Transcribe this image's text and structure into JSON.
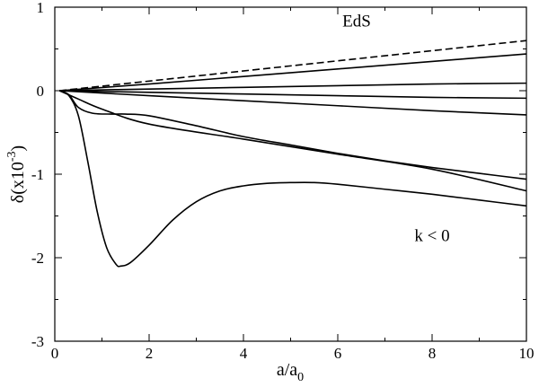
{
  "chart_data": {
    "type": "line",
    "title": "",
    "xlabel": {
      "base": "a/a",
      "sub": "0"
    },
    "ylabel": {
      "base": "δ(x10",
      "sup": "-3",
      "end": ")"
    },
    "xlim": [
      0,
      10
    ],
    "ylim": [
      -3,
      1
    ],
    "xticks": [
      0,
      2,
      4,
      6,
      8,
      10
    ],
    "yticks": [
      -3,
      -2,
      -1,
      0,
      1
    ],
    "grid": false,
    "annotations": [
      {
        "text": "EdS",
        "x": 6.4,
        "y": 0.77
      },
      {
        "text": "k < 0",
        "x": 8.0,
        "y": -1.8
      }
    ],
    "series": [
      {
        "style": "dashed",
        "points": [
          [
            0.1,
            0
          ],
          [
            10,
            0.6
          ]
        ]
      },
      {
        "style": "solid",
        "points": [
          [
            0.1,
            0
          ],
          [
            2,
            0.08
          ],
          [
            4,
            0.17
          ],
          [
            6,
            0.26
          ],
          [
            8,
            0.35
          ],
          [
            10,
            0.44
          ]
        ]
      },
      {
        "style": "solid",
        "points": [
          [
            0.1,
            0
          ],
          [
            2,
            0.02
          ],
          [
            4,
            0.04
          ],
          [
            6,
            0.06
          ],
          [
            8,
            0.08
          ],
          [
            10,
            0.09
          ]
        ]
      },
      {
        "style": "solid",
        "points": [
          [
            0.1,
            0
          ],
          [
            2,
            -0.02
          ],
          [
            4,
            -0.04
          ],
          [
            6,
            -0.06
          ],
          [
            8,
            -0.08
          ],
          [
            10,
            -0.09
          ]
        ]
      },
      {
        "style": "solid",
        "points": [
          [
            0.1,
            0
          ],
          [
            2,
            -0.06
          ],
          [
            4,
            -0.12
          ],
          [
            6,
            -0.18
          ],
          [
            8,
            -0.24
          ],
          [
            10,
            -0.29
          ]
        ]
      },
      {
        "style": "solid",
        "points": [
          [
            0.1,
            0
          ],
          [
            0.5,
            -0.1
          ],
          [
            1,
            -0.22
          ],
          [
            2,
            -0.4
          ],
          [
            4,
            -0.58
          ],
          [
            6,
            -0.76
          ],
          [
            8,
            -0.94
          ],
          [
            10,
            -1.2
          ]
        ]
      },
      {
        "style": "solid",
        "points": [
          [
            0.1,
            0
          ],
          [
            0.3,
            -0.05
          ],
          [
            0.5,
            -0.2
          ],
          [
            0.8,
            -0.27
          ],
          [
            1.2,
            -0.28
          ],
          [
            1.5,
            -0.28
          ],
          [
            2,
            -0.3
          ],
          [
            3,
            -0.42
          ],
          [
            4,
            -0.55
          ],
          [
            5,
            -0.65
          ],
          [
            6,
            -0.75
          ],
          [
            7,
            -0.84
          ],
          [
            8,
            -0.92
          ],
          [
            9,
            -0.99
          ],
          [
            10,
            -1.06
          ]
        ]
      },
      {
        "style": "solid",
        "points": [
          [
            0.1,
            0
          ],
          [
            0.3,
            -0.06
          ],
          [
            0.5,
            -0.3
          ],
          [
            0.7,
            -0.85
          ],
          [
            0.9,
            -1.45
          ],
          [
            1.1,
            -1.88
          ],
          [
            1.3,
            -2.08
          ],
          [
            1.4,
            -2.1
          ],
          [
            1.6,
            -2.06
          ],
          [
            2,
            -1.85
          ],
          [
            2.5,
            -1.55
          ],
          [
            3,
            -1.33
          ],
          [
            3.5,
            -1.2
          ],
          [
            4,
            -1.14
          ],
          [
            4.5,
            -1.11
          ],
          [
            5,
            -1.1
          ],
          [
            5.5,
            -1.1
          ],
          [
            6,
            -1.12
          ],
          [
            7,
            -1.18
          ],
          [
            8,
            -1.24
          ],
          [
            9,
            -1.31
          ],
          [
            10,
            -1.38
          ]
        ]
      }
    ]
  }
}
